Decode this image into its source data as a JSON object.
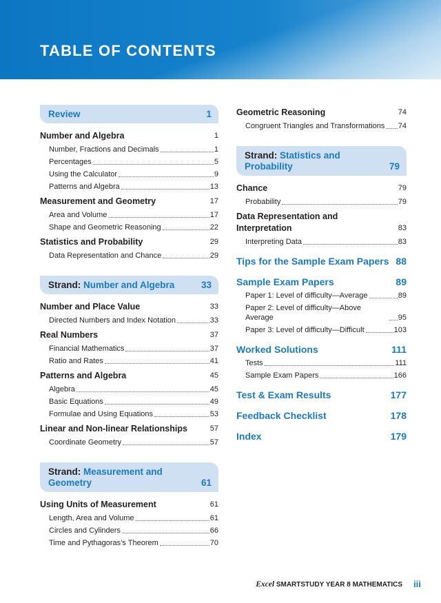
{
  "header": {
    "title": "TABLE OF CONTENTS"
  },
  "columns": [
    [
      {
        "kind": "banner",
        "title": "Review",
        "page": 1
      },
      {
        "kind": "heading",
        "title": "Number and Algebra",
        "page": 1
      },
      {
        "kind": "item",
        "title": "Number, Fractions and Decimals",
        "page": 1
      },
      {
        "kind": "item",
        "title": "Percentages",
        "page": 5
      },
      {
        "kind": "item",
        "title": "Using the Calculator",
        "page": 9
      },
      {
        "kind": "item",
        "title": "Patterns and Algebra",
        "page": 13
      },
      {
        "kind": "heading",
        "title": "Measurement and Geometry",
        "page": 17
      },
      {
        "kind": "item",
        "title": "Area and Volume",
        "page": 17
      },
      {
        "kind": "item",
        "title": "Shape and Geometric Reasoning",
        "page": 22
      },
      {
        "kind": "heading",
        "title": "Statistics and Probability",
        "page": 29
      },
      {
        "kind": "item",
        "title": "Data Representation and Chance",
        "page": 29
      },
      {
        "kind": "banner",
        "prefix": "Strand:",
        "title": "Number and Algebra",
        "page": 33
      },
      {
        "kind": "heading",
        "title": "Number and Place Value",
        "page": 33
      },
      {
        "kind": "item",
        "title": "Directed Numbers and Index Notation",
        "page": 33
      },
      {
        "kind": "heading",
        "title": "Real Numbers",
        "page": 37
      },
      {
        "kind": "item",
        "title": "Financial Mathematics",
        "page": 37
      },
      {
        "kind": "item",
        "title": "Ratio and Rates",
        "page": 41
      },
      {
        "kind": "heading",
        "title": "Patterns and Algebra",
        "page": 45
      },
      {
        "kind": "item",
        "title": "Algebra",
        "page": 45
      },
      {
        "kind": "item",
        "title": "Basic Equations",
        "page": 49
      },
      {
        "kind": "item",
        "title": "Formulae and Using Equations",
        "page": 53
      },
      {
        "kind": "heading",
        "title": "Linear and Non-linear Relationships",
        "page": 57
      },
      {
        "kind": "item",
        "title": "Coordinate Geometry",
        "page": 57
      },
      {
        "kind": "banner",
        "prefix": "Strand:",
        "title": "Measurement and Geometry",
        "page": 61
      },
      {
        "kind": "heading",
        "title": "Using Units of Measurement",
        "page": 61
      },
      {
        "kind": "item",
        "title": "Length, Area and Volume",
        "page": 61
      },
      {
        "kind": "item",
        "title": "Circles and Cylinders",
        "page": 66
      },
      {
        "kind": "item",
        "title": "Time and Pythagoras’s Theorem",
        "page": 70
      }
    ],
    [
      {
        "kind": "heading",
        "title": "Geometric Reasoning",
        "page": 74
      },
      {
        "kind": "item",
        "title": "Congruent Triangles and Transformations",
        "page": 74
      },
      {
        "kind": "banner",
        "prefix": "Strand:",
        "title": "Statistics and Probability",
        "page": 79
      },
      {
        "kind": "heading",
        "title": "Chance",
        "page": 79
      },
      {
        "kind": "item",
        "title": "Probability",
        "page": 79
      },
      {
        "kind": "heading",
        "title": "Data Representation and Interpretation",
        "page": 83
      },
      {
        "kind": "item",
        "title": "Interpreting Data",
        "page": 83
      },
      {
        "kind": "major",
        "title": "Tips for the Sample Exam Papers",
        "page": 88
      },
      {
        "kind": "major",
        "title": "Sample Exam Papers",
        "page": 89
      },
      {
        "kind": "item",
        "title": "Paper 1: Level of difficulty—Average",
        "page": 89
      },
      {
        "kind": "item",
        "title": "Paper 2: Level of difficulty—Above Average",
        "page": 95
      },
      {
        "kind": "item",
        "title": "Paper 3: Level of difficulty—Difficult",
        "page": 103
      },
      {
        "kind": "major",
        "title": "Worked Solutions",
        "page": 111
      },
      {
        "kind": "item",
        "title": "Tests",
        "page": 111
      },
      {
        "kind": "item",
        "title": "Sample Exam Papers",
        "page": 166
      },
      {
        "kind": "major",
        "title": "Test & Exam Results",
        "page": 177
      },
      {
        "kind": "major",
        "title": "Feedback Checklist",
        "page": 178
      },
      {
        "kind": "major",
        "title": "Index",
        "page": 179
      }
    ]
  ],
  "footer": {
    "brand": "Excel",
    "series": "SMARTSTUDY",
    "book": "YEAR 8 MATHEMATICS",
    "page": "iii"
  }
}
